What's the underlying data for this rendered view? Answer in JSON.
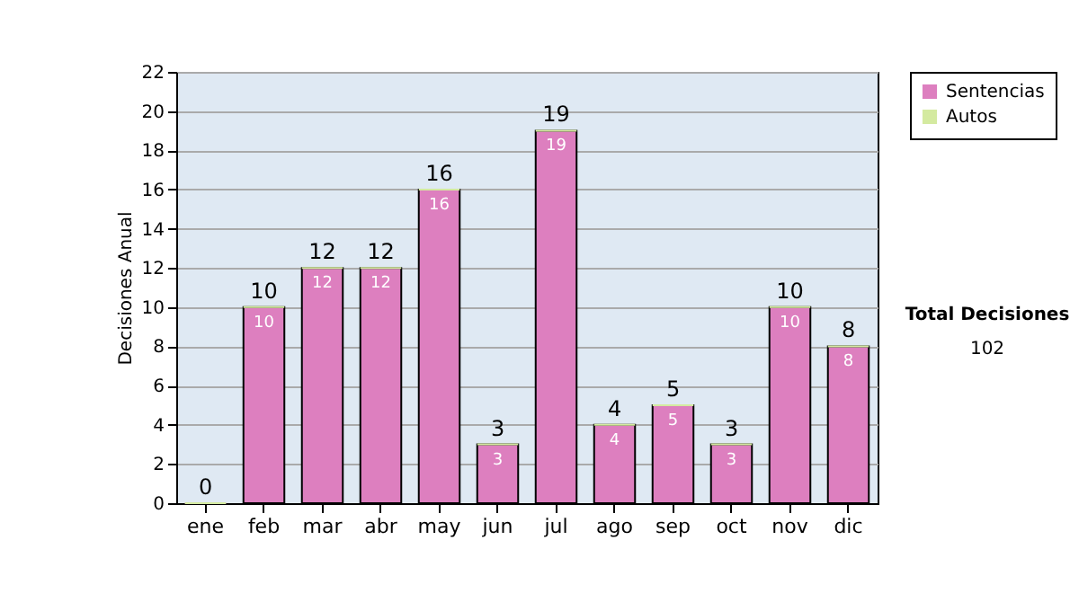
{
  "chart_data": {
    "type": "bar",
    "stacked": true,
    "ylabel": "Decisiones Anual",
    "categories": [
      "ene",
      "feb",
      "mar",
      "abr",
      "may",
      "jun",
      "jul",
      "ago",
      "sep",
      "oct",
      "nov",
      "dic"
    ],
    "series": [
      {
        "name": "Sentencias",
        "color": "#dd7fbf",
        "values": [
          0,
          10,
          12,
          12,
          16,
          3,
          19,
          4,
          5,
          3,
          10,
          8
        ],
        "value_labels": [
          null,
          "10",
          "12",
          "12",
          "16",
          "3",
          "19",
          "4",
          "5",
          "3",
          "10",
          "8"
        ]
      },
      {
        "name": "Autos",
        "color": "#d4eaa0",
        "values": [
          0,
          0,
          0,
          0,
          0,
          0,
          0,
          0,
          0,
          0,
          0,
          0
        ]
      }
    ],
    "totals": [
      "0",
      "10",
      "12",
      "12",
      "16",
      "3",
      "19",
      "4",
      "5",
      "3",
      "10",
      "8"
    ],
    "ylim": [
      0,
      22
    ],
    "yticks": [
      0,
      2,
      4,
      6,
      8,
      10,
      12,
      14,
      16,
      18,
      20,
      22
    ],
    "grid": "y",
    "legend": "right",
    "annotations": [
      "Total Decisiones",
      "102"
    ]
  }
}
